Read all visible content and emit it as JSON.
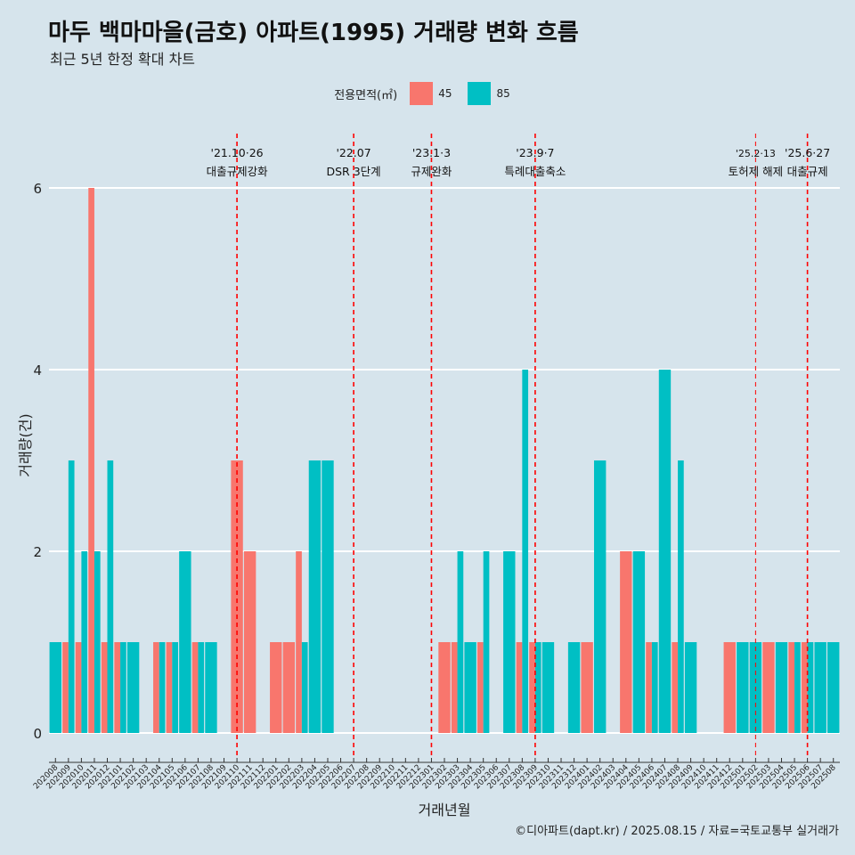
{
  "title": "마두 백마마을(금호) 아파트(1995) 거래량 변화 흐름",
  "subtitle": "최근 5년 한정 확대 차트",
  "caption": "©디아파트(dapt.kr) / 2025.08.15 / 자료=국토교통부 실거래가",
  "colors": {
    "background": "#d6e4ec",
    "s45": "#f8766d",
    "s85": "#00bfc4",
    "event_line": "#ff0000"
  },
  "chart_data": {
    "type": "bar",
    "title": "마두 백마마을(금호) 아파트(1995) 거래량 변화 흐름",
    "subtitle": "최근 5년 한정 확대 차트",
    "xlabel": "거래년월",
    "ylabel": "거래량(건)",
    "ylim": [
      0,
      6.5
    ],
    "yticks": [
      0,
      2,
      4,
      6
    ],
    "grid": true,
    "legend_title": "전용면적(㎡)",
    "legend_position": "top",
    "categories": [
      "202008",
      "202009",
      "202010",
      "202011",
      "202012",
      "202101",
      "202102",
      "202103",
      "202104",
      "202105",
      "202106",
      "202107",
      "202108",
      "202109",
      "202110",
      "202111",
      "202112",
      "202201",
      "202202",
      "202203",
      "202204",
      "202205",
      "202206",
      "202207",
      "202208",
      "202209",
      "202210",
      "202211",
      "202212",
      "202301",
      "202302",
      "202303",
      "202304",
      "202305",
      "202306",
      "202307",
      "202308",
      "202309",
      "202310",
      "202311",
      "202312",
      "202401",
      "202402",
      "202403",
      "202404",
      "202405",
      "202406",
      "202407",
      "202408",
      "202409",
      "202410",
      "202411",
      "202412",
      "202501",
      "202502",
      "202503",
      "202504",
      "202505",
      "202506",
      "202507",
      "202508"
    ],
    "series": [
      {
        "name": "45",
        "values": [
          0,
          1,
          1,
          6,
          1,
          1,
          0,
          0,
          1,
          1,
          0,
          1,
          0,
          0,
          3,
          2,
          0,
          1,
          1,
          2,
          0,
          0,
          0,
          0,
          0,
          0,
          0,
          0,
          0,
          0,
          1,
          1,
          0,
          1,
          0,
          0,
          1,
          1,
          0,
          0,
          0,
          1,
          0,
          0,
          2,
          0,
          1,
          0,
          1,
          0,
          0,
          0,
          1,
          0,
          0,
          1,
          0,
          1,
          1,
          0,
          0
        ]
      },
      {
        "name": "85",
        "values": [
          1,
          3,
          2,
          2,
          3,
          1,
          1,
          0,
          1,
          1,
          2,
          1,
          1,
          0,
          0,
          0,
          0,
          0,
          0,
          1,
          3,
          3,
          0,
          0,
          0,
          0,
          0,
          0,
          0,
          0,
          0,
          2,
          1,
          2,
          0,
          2,
          4,
          1,
          1,
          0,
          1,
          0,
          3,
          0,
          0,
          2,
          1,
          4,
          3,
          1,
          0,
          0,
          0,
          1,
          1,
          0,
          1,
          1,
          1,
          1,
          1
        ]
      }
    ],
    "events": [
      {
        "category": "202110",
        "date": "'21.10·26",
        "label": "대출규제강화"
      },
      {
        "category": "202207",
        "date": "'22.07",
        "label": "DSR 3단계"
      },
      {
        "category": "202301",
        "date": "'23.1·3",
        "label": "규제완화"
      },
      {
        "category": "202309",
        "date": "'23.9·7",
        "label": "특례대출축소"
      },
      {
        "category": "202502",
        "date": "'25.2·13",
        "label": "토허제 해제"
      },
      {
        "category": "202506",
        "date": "'25.6·27",
        "label": "대출규제"
      }
    ]
  }
}
